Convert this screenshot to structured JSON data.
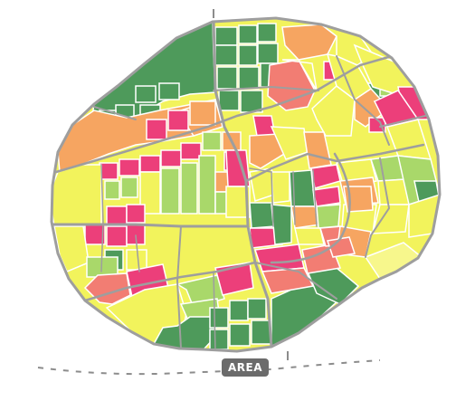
{
  "map": {
    "label": "AREA",
    "label_bg": "#6b6b6b",
    "boundary_color": "#9e9e9e",
    "road_color": "#9e9e9e",
    "dashed_line_color": "#8c8c8c",
    "colors": {
      "dark_green": "#4e9a5b",
      "light_green": "#a9d86a",
      "yellow": "#f2f35c",
      "light_yellow": "#f7f78c",
      "orange": "#f6a561",
      "pink": "#ec3f7a",
      "salmon": "#f27d73"
    }
  }
}
